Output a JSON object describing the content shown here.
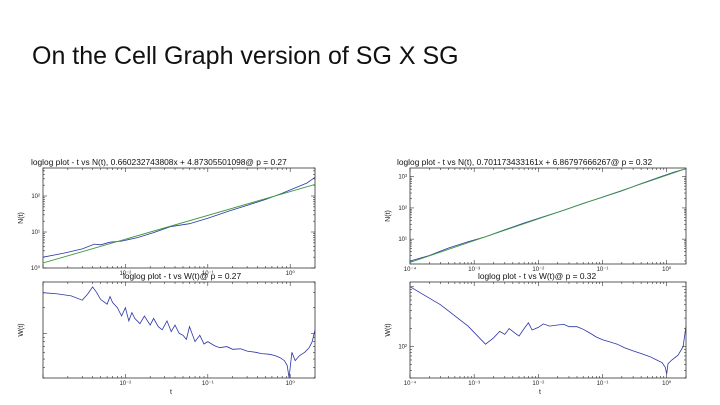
{
  "slide": {
    "title": "On the Cell Graph version of SG X SG"
  },
  "colors": {
    "data": "#2b35a8",
    "fit": "#3e9a3e",
    "frame": "#333333",
    "background": "#ffffff"
  },
  "chart_data": [
    {
      "type": "line",
      "title": "loglog plot - t vs N(t), 0.660232743808x + 4.87305501098@ p = 0.27",
      "xlabel": "",
      "ylabel": "N(t)",
      "x_scale": "log",
      "y_scale": "log",
      "xlim": [
        0.001,
        2
      ],
      "ylim": [
        1,
        600
      ],
      "x_ticks": [
        {
          "value": 0.01,
          "label": "10⁻²"
        },
        {
          "value": 0.1,
          "label": "10⁻¹"
        },
        {
          "value": 1,
          "label": "10⁰"
        }
      ],
      "y_ticks": [
        {
          "value": 1,
          "label": "10⁰"
        },
        {
          "value": 10,
          "label": "10¹"
        },
        {
          "value": 100,
          "label": "10²"
        }
      ],
      "series": [
        {
          "name": "",
          "role": "data",
          "x": [
            0.001,
            0.0018,
            0.003,
            0.0042,
            0.005,
            0.0065,
            0.009,
            0.014,
            0.022,
            0.035,
            0.06,
            0.1,
            0.18,
            0.3,
            0.5,
            0.8,
            1.2,
            1.6,
            2
          ],
          "y": [
            2.0,
            2.6,
            3.4,
            4.6,
            4.4,
            5.2,
            5.6,
            7.0,
            9.6,
            14.0,
            17.0,
            24.0,
            38.0,
            55.0,
            80.0,
            120.0,
            175.0,
            230.0,
            330.0
          ]
        },
        {
          "name": "",
          "role": "fit",
          "x": [
            0.001,
            2
          ],
          "y": [
            1.38,
            210.0
          ]
        }
      ]
    },
    {
      "type": "line",
      "title": "loglog plot - t vs W(t)@ p = 0.27",
      "xlabel": "t",
      "ylabel": "W(t)",
      "x_scale": "log",
      "y_scale": "log",
      "xlim": [
        0.001,
        2
      ],
      "ylim": [
        30,
        400
      ],
      "x_ticks": [
        {
          "value": 0.01,
          "label": "10⁻²"
        },
        {
          "value": 0.1,
          "label": "10⁻¹"
        },
        {
          "value": 1,
          "label": "10⁰"
        }
      ],
      "y_ticks": [],
      "series": [
        {
          "name": "",
          "role": "data",
          "x": [
            0.001,
            0.0015,
            0.0022,
            0.003,
            0.0035,
            0.004,
            0.0045,
            0.005,
            0.006,
            0.0065,
            0.007,
            0.008,
            0.009,
            0.01,
            0.011,
            0.012,
            0.013,
            0.015,
            0.017,
            0.02,
            0.022,
            0.025,
            0.028,
            0.032,
            0.036,
            0.04,
            0.045,
            0.05,
            0.055,
            0.06,
            0.07,
            0.08,
            0.09,
            0.1,
            0.12,
            0.14,
            0.17,
            0.2,
            0.25,
            0.3,
            0.38,
            0.45,
            0.55,
            0.65,
            0.75,
            0.85,
            0.92,
            0.97,
            1.0,
            1.05,
            1.15,
            1.3,
            1.5,
            1.7,
            1.85,
            2.0
          ],
          "y": [
            300,
            290,
            275,
            245,
            290,
            350,
            300,
            250,
            220,
            270,
            230,
            200,
            160,
            200,
            140,
            175,
            150,
            130,
            160,
            125,
            150,
            120,
            110,
            140,
            105,
            125,
            100,
            95,
            85,
            120,
            80,
            95,
            75,
            80,
            72,
            68,
            70,
            65,
            66,
            62,
            60,
            58,
            57,
            55,
            52,
            48,
            42,
            30,
            40,
            60,
            48,
            55,
            60,
            68,
            80,
            110
          ]
        }
      ]
    },
    {
      "type": "line",
      "title": "loglog plot - t vs N(t), 0.701173433161x + 6.86797666267@ p = 0.32",
      "xlabel": "",
      "ylabel": "N(t)",
      "x_scale": "log",
      "y_scale": "log",
      "xlim": [
        0.0001,
        2
      ],
      "ylim": [
        1.6,
        1900
      ],
      "x_ticks": [
        {
          "value": 0.0001,
          "label": "10⁻⁴"
        },
        {
          "value": 0.001,
          "label": "10⁻³"
        },
        {
          "value": 0.01,
          "label": "10⁻²"
        },
        {
          "value": 0.1,
          "label": "10⁻¹"
        },
        {
          "value": 1,
          "label": "10⁰"
        }
      ],
      "y_ticks": [
        {
          "value": 10,
          "label": "10¹"
        },
        {
          "value": 100,
          "label": "10²"
        },
        {
          "value": 1000,
          "label": "10³"
        }
      ],
      "series": [
        {
          "name": "",
          "role": "data",
          "x": [
            0.0001,
            0.0002,
            0.0004,
            0.0008,
            0.0015,
            0.003,
            0.006,
            0.012,
            0.025,
            0.05,
            0.1,
            0.2,
            0.4,
            0.8,
            1.3,
            2
          ],
          "y": [
            2.0,
            3.0,
            5.2,
            8.3,
            12.0,
            20.0,
            33.0,
            52.0,
            84.0,
            140.0,
            220.0,
            350.0,
            600.0,
            1000.0,
            1400.0,
            1800.0
          ]
        },
        {
          "name": "",
          "role": "fit",
          "x": [
            0.0001,
            2
          ],
          "y": [
            1.8,
            1800.0
          ]
        }
      ]
    },
    {
      "type": "line",
      "title": "loglog plot - t vs W(t)@ p = 0.32",
      "xlabel": "t",
      "ylabel": "W(t)",
      "x_scale": "log",
      "y_scale": "log",
      "xlim": [
        0.0001,
        2
      ],
      "ylim": [
        30,
        1200
      ],
      "x_ticks": [
        {
          "value": 0.0001,
          "label": "10⁻⁴"
        },
        {
          "value": 0.001,
          "label": "10⁻³"
        },
        {
          "value": 0.01,
          "label": "10⁻²"
        },
        {
          "value": 0.1,
          "label": "10⁻¹"
        },
        {
          "value": 1,
          "label": "10⁰"
        }
      ],
      "y_ticks": [
        {
          "value": 100,
          "label": "10²"
        }
      ],
      "series": [
        {
          "name": "",
          "role": "data",
          "x": [
            0.0001,
            0.0003,
            0.0008,
            0.0015,
            0.002,
            0.0025,
            0.003,
            0.0035,
            0.004,
            0.005,
            0.006,
            0.007,
            0.008,
            0.01,
            0.012,
            0.015,
            0.02,
            0.025,
            0.03,
            0.04,
            0.05,
            0.06,
            0.08,
            0.1,
            0.13,
            0.17,
            0.22,
            0.3,
            0.4,
            0.55,
            0.7,
            0.85,
            0.95,
            1.0,
            1.05,
            1.2,
            1.5,
            1.8,
            2.0
          ],
          "y": [
            1000,
            500,
            220,
            110,
            140,
            180,
            160,
            200,
            180,
            150,
            200,
            250,
            190,
            210,
            240,
            220,
            230,
            235,
            215,
            215,
            195,
            175,
            145,
            130,
            120,
            110,
            96,
            85,
            77,
            68,
            60,
            54,
            45,
            35,
            52,
            60,
            72,
            100,
            220
          ]
        }
      ]
    }
  ]
}
